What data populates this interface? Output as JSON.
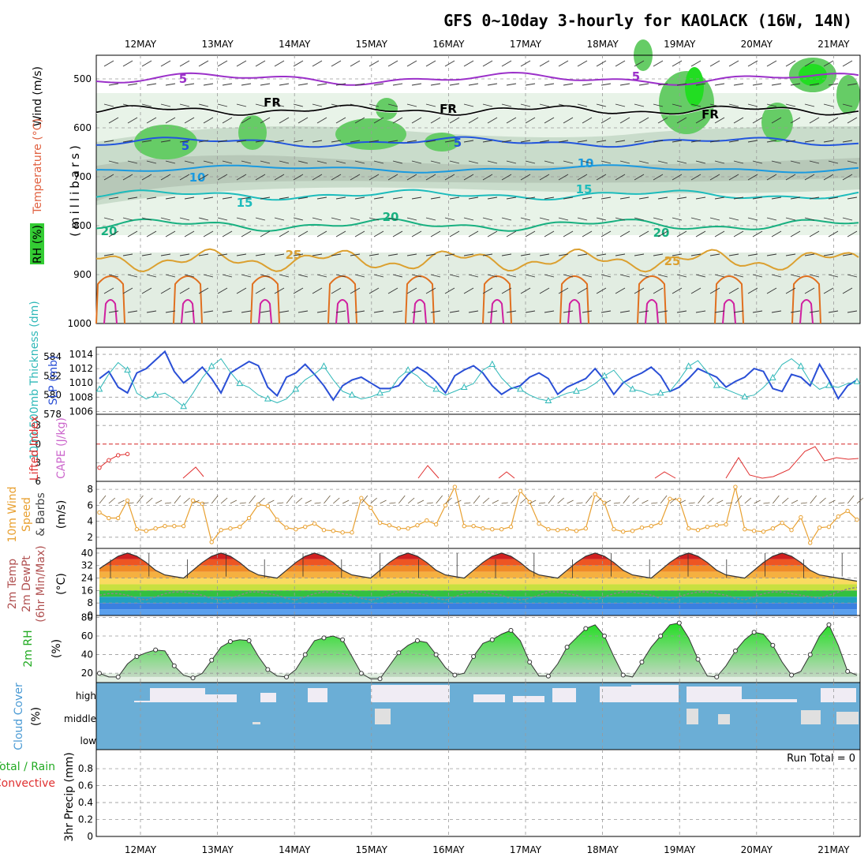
{
  "title": "GFS 0~10day 3-hourly for KAOLACK (16W, 14N)",
  "dates": [
    "12MAY",
    "13MAY",
    "14MAY",
    "15MAY",
    "16MAY",
    "17MAY",
    "18MAY",
    "19MAY",
    "20MAY",
    "21MAY"
  ],
  "colors": {
    "rh": "#33cc33",
    "temp_line": "#2255dd",
    "frame": "#000000",
    "cloud": "#6baed6",
    "cloud_clear": "#f0ecf4",
    "orange": "#e8a030",
    "cape_red": "#e03030"
  },
  "panels": {
    "upper": {
      "ylabel": "(millibars)",
      "legend": [
        "Wind (m/s)",
        "Temperature (°C)",
        "RH (%)"
      ],
      "yticks": [
        500,
        600,
        700,
        800,
        900,
        1000
      ],
      "isotherm_labels": [
        "5",
        "5",
        "5",
        "FR",
        "FR",
        "FR",
        "5",
        "10",
        "10",
        "15",
        "15",
        "20",
        "20",
        "20",
        "25",
        "25"
      ]
    },
    "slp": {
      "ylabel_left": "1000-500mb Thickness (dm)",
      "ylabel_right": "SLP (mb)",
      "left_ticks": [
        "584",
        "582",
        "580",
        "578"
      ],
      "right_ticks": [
        "1014",
        "1012",
        "1010",
        "1008",
        "1006"
      ]
    },
    "cape": {
      "ylabel_left": "Lifted Index",
      "ylabel_right": "CAPE (J/kg)",
      "ticks": [
        "-3",
        "0",
        "3",
        "6"
      ]
    },
    "wind10": {
      "ylabel": [
        "10m Wind",
        "Speed",
        "& Barbs"
      ],
      "unit": "(m/s)",
      "ticks": [
        "8",
        "6",
        "4",
        "2"
      ]
    },
    "temp2m": {
      "ylabel": [
        "2m Temp",
        "2m DewPt",
        "(6hr Min/Max)"
      ],
      "unit": "(°C)",
      "ticks": [
        "40",
        "32",
        "24",
        "16",
        "8",
        "0"
      ]
    },
    "rh2m": {
      "ylabel": "2m RH",
      "unit": "(%)",
      "ticks": [
        "80",
        "60",
        "40",
        "20"
      ]
    },
    "cloud": {
      "ylabel": "Cloud Cover",
      "unit": "(%)",
      "levels": [
        "high",
        "middle",
        "low"
      ]
    },
    "precip": {
      "ylabel": [
        "Total / Rain",
        "Convective"
      ],
      "unit": "3hr Precip (mm)",
      "ticks": [
        "0.8",
        "0.6",
        "0.4",
        "0.2",
        "0"
      ],
      "run_total": "Run Total = 0"
    }
  },
  "chart_data": [
    {
      "type": "line",
      "title": "1000-500mb Thickness (dm) / SLP (mb)",
      "series": [
        {
          "name": "SLP (mb)",
          "values": [
            1010.6,
            1011.6,
            1009.4,
            1008.6,
            1011.4,
            1012.0,
            1013.2,
            1014.4,
            1011.6,
            1010.0,
            1011.0,
            1012.2,
            1010.6,
            1008.6,
            1011.4,
            1012.2,
            1013.0,
            1012.4,
            1009.4,
            1008.2,
            1010.8,
            1011.4,
            1012.6,
            1011.2,
            1009.6,
            1007.6,
            1009.6,
            1010.4,
            1010.8,
            1010.0,
            1009.2,
            1009.2,
            1009.6,
            1011.2,
            1012.2,
            1011.4,
            1010.2,
            1008.6,
            1011.0,
            1011.8,
            1012.4,
            1011.4,
            1009.6,
            1008.4,
            1009.2,
            1009.6,
            1010.8,
            1011.4,
            1010.6,
            1008.4,
            1009.4,
            1010.0,
            1010.6,
            1012.0,
            1010.4,
            1008.4,
            1010.0,
            1010.8,
            1011.4,
            1012.2,
            1011.0,
            1008.8,
            1009.4,
            1010.6,
            1012.0,
            1011.4,
            1010.8,
            1009.4,
            1010.2,
            1010.8,
            1012.0,
            1011.6,
            1009.2,
            1008.8,
            1011.2,
            1010.8,
            1009.6,
            1012.6,
            1010.4,
            1007.8,
            1009.6,
            1010.4
          ]
        },
        {
          "name": "1000-500mb Thickness (dm)",
          "values": [
            580.6,
            582.2,
            583.4,
            582.6,
            580.2,
            579.6,
            580.0,
            580.2,
            579.6,
            578.8,
            580.2,
            581.8,
            583.0,
            583.8,
            582.4,
            581.2,
            580.8,
            580.0,
            579.6,
            579.2,
            579.6,
            580.6,
            581.6,
            582.2,
            583.0,
            581.6,
            580.4,
            580.0,
            579.6,
            579.8,
            580.2,
            580.4,
            581.8,
            582.6,
            582.0,
            581.0,
            580.6,
            580.0,
            580.4,
            580.8,
            581.2,
            582.6,
            583.2,
            581.8,
            580.8,
            580.6,
            580.0,
            579.6,
            579.4,
            579.8,
            580.2,
            580.4,
            580.6,
            581.2,
            582.0,
            582.6,
            581.4,
            580.6,
            580.4,
            580.0,
            580.2,
            580.4,
            581.6,
            583.0,
            583.6,
            582.4,
            581.0,
            580.6,
            580.2,
            579.8,
            580.0,
            580.8,
            581.8,
            583.2,
            583.8,
            583.0,
            581.4,
            580.6,
            581.0,
            580.8,
            581.2,
            581.4
          ]
        }
      ]
    },
    {
      "type": "line",
      "title": "Lifted Index / CAPE (J/kg)",
      "series": [
        {
          "name": "Lifted Index",
          "values": [
            3.8,
            2.6,
            1.8,
            1.6
          ]
        }
      ]
    },
    {
      "type": "line",
      "title": "10m Wind Speed & Barbs (m/s)",
      "series": [
        {
          "name": "10m Wind Speed",
          "values": [
            5.1,
            4.4,
            4.4,
            6.6,
            3.0,
            2.8,
            3.1,
            3.4,
            3.4,
            3.4,
            6.6,
            6.2,
            1.4,
            2.9,
            3.1,
            3.3,
            4.4,
            6.1,
            5.9,
            4.2,
            3.2,
            3.0,
            3.3,
            3.7,
            2.9,
            2.8,
            2.6,
            2.6,
            6.9,
            5.7,
            3.8,
            3.5,
            3.1,
            3.1,
            3.5,
            4.1,
            3.6,
            6.0,
            8.3,
            3.4,
            3.4,
            3.1,
            3.0,
            3.0,
            3.3,
            7.8,
            6.4,
            3.7,
            3.0,
            2.9,
            3.0,
            2.8,
            3.1,
            7.4,
            6.3,
            3.0,
            2.7,
            2.8,
            3.2,
            3.4,
            3.8,
            6.8,
            6.7,
            3.1,
            2.9,
            3.3,
            3.5,
            3.6,
            8.3,
            3.0,
            2.8,
            2.7,
            3.1,
            3.8,
            2.9,
            4.5,
            1.3,
            3.2,
            3.3,
            4.6,
            5.3,
            4.2
          ]
        }
      ]
    },
    {
      "type": "area",
      "title": "2m Temp / 2m DewPt (6hr Min/Max) (°C)",
      "series": [
        {
          "name": "2m Temp",
          "values": [
            30,
            34,
            38,
            40,
            38,
            34,
            29,
            26,
            25,
            24,
            29,
            34,
            38,
            40,
            38,
            34,
            29,
            26,
            25,
            24,
            29,
            34,
            38,
            40,
            38,
            34,
            29,
            26,
            25,
            24,
            29,
            34,
            38,
            40,
            38,
            34,
            29,
            26,
            25,
            24,
            29,
            34,
            38,
            40,
            38,
            34,
            29,
            26,
            25,
            24,
            29,
            34,
            38,
            40,
            38,
            34,
            29,
            26,
            25,
            24,
            29,
            34,
            38,
            40,
            38,
            34,
            29,
            26,
            25,
            24,
            29,
            34,
            38,
            40,
            38,
            34,
            29,
            26,
            25,
            24,
            23,
            22
          ]
        },
        {
          "name": "2m DewPt",
          "values": [
            13,
            14,
            14,
            13,
            11,
            10,
            12,
            14,
            15,
            15,
            14,
            13,
            11,
            10,
            11,
            13,
            15,
            15,
            14,
            13,
            11,
            10,
            12,
            14,
            15,
            15,
            14,
            13,
            11,
            10,
            11,
            13,
            15,
            15,
            14,
            13,
            11,
            10,
            12,
            14,
            15,
            15,
            14,
            13,
            11,
            10,
            11,
            13,
            15,
            15,
            14,
            13,
            11,
            10,
            12,
            14,
            15,
            15,
            14,
            13,
            11,
            10,
            12,
            14,
            15,
            15,
            14,
            13,
            11,
            10,
            12,
            14,
            15,
            15,
            14,
            13,
            12,
            11,
            13,
            15,
            17,
            18
          ]
        }
      ]
    },
    {
      "type": "area",
      "title": "2m RH (%)",
      "series": [
        {
          "name": "2m RH",
          "values": [
            20,
            16,
            16,
            30,
            38,
            42,
            45,
            44,
            28,
            18,
            15,
            20,
            34,
            48,
            54,
            56,
            55,
            38,
            24,
            17,
            16,
            24,
            40,
            55,
            58,
            60,
            56,
            38,
            20,
            14,
            14,
            28,
            42,
            50,
            55,
            53,
            40,
            26,
            18,
            20,
            38,
            52,
            56,
            62,
            66,
            55,
            32,
            17,
            17,
            30,
            48,
            58,
            68,
            72,
            60,
            38,
            18,
            16,
            32,
            48,
            60,
            72,
            74,
            58,
            35,
            17,
            16,
            28,
            44,
            56,
            64,
            62,
            50,
            32,
            18,
            22,
            40,
            60,
            72,
            50,
            22,
            18
          ]
        }
      ]
    },
    {
      "type": "bar",
      "title": "3hr Precip (mm)",
      "series": [
        {
          "name": "Total / Rain",
          "values": []
        },
        {
          "name": "Convective",
          "values": []
        }
      ],
      "ylim": [
        0,
        1
      ]
    }
  ]
}
